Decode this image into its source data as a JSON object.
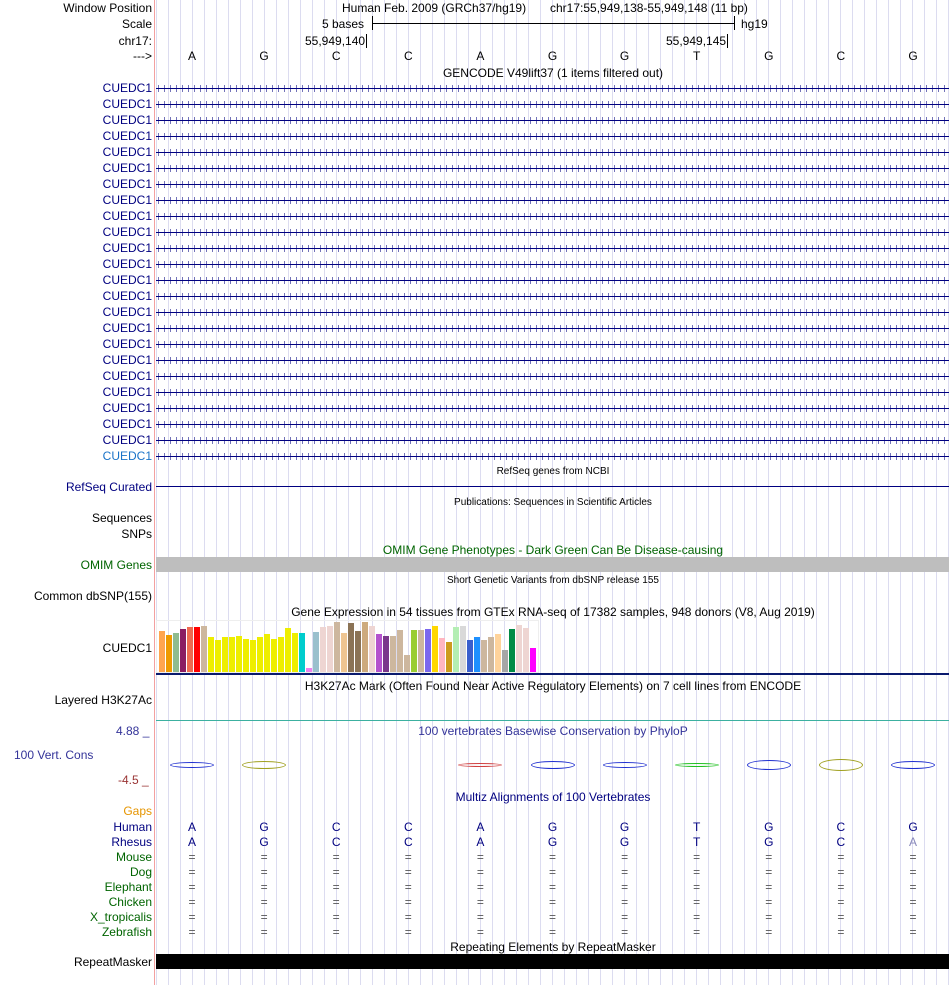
{
  "header": {
    "window_position_label": "Window Position",
    "scale_label": "Scale",
    "chrom_label": "chr17:",
    "strand_label": "--->",
    "assembly": "Human Feb. 2009 (GRCh37/hg19)",
    "position": "chr17:55,949,138-55,949,148 (11 bp)",
    "scale_text": "5 bases",
    "scale_db": "hg19",
    "coord_left": "55,949,140",
    "coord_right": "55,949,145",
    "bases": [
      "A",
      "G",
      "C",
      "C",
      "A",
      "G",
      "G",
      "T",
      "G",
      "C",
      "G"
    ]
  },
  "gencode": {
    "title": "GENCODE V49lift37 (1 items filtered out)",
    "gene": "CUEDC1",
    "row_count": 24
  },
  "refseq": {
    "title": "RefSeq genes from NCBI",
    "label": "RefSeq Curated"
  },
  "pubs": {
    "title": "Publications: Sequences in Scientific Articles",
    "label1": "Sequences",
    "label2": "SNPs"
  },
  "omim": {
    "title": "OMIM Gene Phenotypes - Dark Green Can Be Disease-causing",
    "label": "OMIM Genes"
  },
  "dbsnp": {
    "title": "Short Genetic Variants from dbSNP release 155",
    "label": "Common dbSNP(155)"
  },
  "gtex": {
    "title": "Gene Expression in 54 tissues from GTEx RNA-seq of 17382 samples, 948 donors (V8, Aug 2019)",
    "label": "CUEDC1",
    "values": [
      128,
      116,
      122,
      134,
      140,
      140,
      143,
      107,
      98,
      107,
      110,
      113,
      101,
      98,
      110,
      119,
      101,
      110,
      137,
      122,
      122,
      11,
      125,
      140,
      143,
      155,
      122,
      152,
      128,
      155,
      143,
      119,
      113,
      113,
      131,
      53,
      131,
      131,
      134,
      143,
      104,
      92,
      140,
      143,
      98,
      107,
      98,
      107,
      119,
      68,
      134,
      146,
      137,
      74
    ],
    "colors": [
      "#FFA54F",
      "#EE9A00",
      "#8FBC8F",
      "#8B1C62",
      "#EE6A50",
      "#FF0000",
      "#CDB79E",
      "#EEEE00",
      "#EEEE00",
      "#EEEE00",
      "#EEEE00",
      "#EEEE00",
      "#EEEE00",
      "#EEEE00",
      "#EEEE00",
      "#EEEE00",
      "#EEEE00",
      "#EEEE00",
      "#EEEE00",
      "#EEEE00",
      "#00CDCD",
      "#EE82EE",
      "#9AC0CD",
      "#EED5D2",
      "#EED5D2",
      "#CDB79E",
      "#EEC591",
      "#8B7355",
      "#8B7355",
      "#CDAA7D",
      "#EED5D2",
      "#B452CD",
      "#7A378B",
      "#CDB79E",
      "#CDB79E",
      "#CDB79E",
      "#9ACD32",
      "#CDB79E",
      "#7B68EE",
      "#FFD700",
      "#FFB6C1",
      "#CD9B1D",
      "#B4EEB4",
      "#D9D9D9",
      "#3A5FCD",
      "#1E90FF",
      "#CDB79E",
      "#CDB79E",
      "#FFD39B",
      "#A6A6A6",
      "#008B45",
      "#EED5D2",
      "#EED5D2",
      "#FF00FF"
    ]
  },
  "h3k27ac": {
    "title": "H3K27Ac Mark (Often Found Near Active Regulatory Elements) on 7 cell lines from ENCODE",
    "label": "Layered H3K27Ac"
  },
  "cons": {
    "title": "100 vertebrates Basewise Conservation by PhyloP",
    "label": "100 Vert. Cons",
    "max": "4.88 _",
    "min": "-4.5 _"
  },
  "multiz": {
    "title": "Multiz Alignments of 100 Vertebrates",
    "gaps_label": "Gaps",
    "species": [
      {
        "name": "Human",
        "seq": [
          "A",
          "G",
          "C",
          "C",
          "A",
          "G",
          "G",
          "T",
          "G",
          "C",
          "G"
        ]
      },
      {
        "name": "Rhesus",
        "seq": [
          "A",
          "G",
          "C",
          "C",
          "A",
          "G",
          "G",
          "T",
          "G",
          "C",
          "A"
        ]
      },
      {
        "name": "Mouse",
        "seq": [
          "=",
          "=",
          "=",
          "=",
          "=",
          "=",
          "=",
          "=",
          "=",
          "=",
          "="
        ]
      },
      {
        "name": "Dog",
        "seq": [
          "=",
          "=",
          "=",
          "=",
          "=",
          "=",
          "=",
          "=",
          "=",
          "=",
          "="
        ]
      },
      {
        "name": "Elephant",
        "seq": [
          "=",
          "=",
          "=",
          "=",
          "=",
          "=",
          "=",
          "=",
          "=",
          "=",
          "="
        ]
      },
      {
        "name": "Chicken",
        "seq": [
          "=",
          "=",
          "=",
          "=",
          "=",
          "=",
          "=",
          "=",
          "=",
          "=",
          "="
        ]
      },
      {
        "name": "X_tropicalis",
        "seq": [
          "=",
          "=",
          "=",
          "=",
          "=",
          "=",
          "=",
          "=",
          "=",
          "=",
          "="
        ]
      },
      {
        "name": "Zebrafish",
        "seq": [
          "=",
          "=",
          "=",
          "=",
          "=",
          "=",
          "=",
          "=",
          "=",
          "=",
          "="
        ]
      }
    ]
  },
  "rmsk": {
    "title": "Repeating Elements by RepeatMasker",
    "label": "RepeatMasker"
  }
}
